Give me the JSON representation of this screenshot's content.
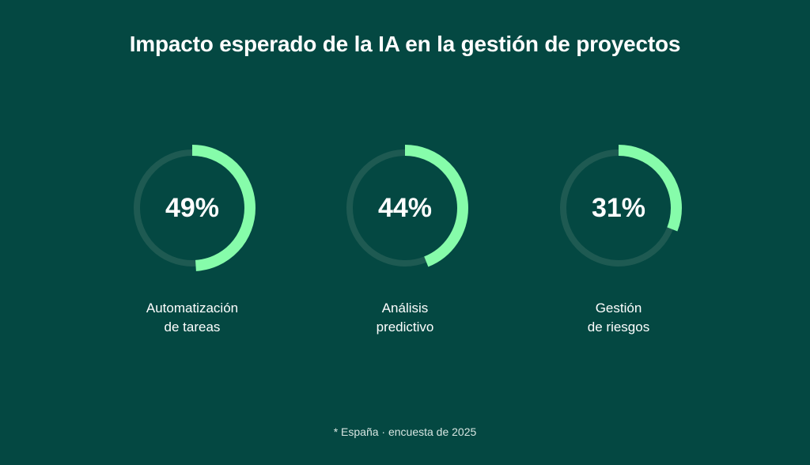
{
  "title": "Impacto esperado de la IA en la gestión de proyectos",
  "chart_data": {
    "type": "donut",
    "items": [
      {
        "label_line1": "Automatización",
        "label_line2": "de tareas",
        "value": 49,
        "display": "49%"
      },
      {
        "label_line1": "Análisis",
        "label_line2": "predictivo",
        "value": 44,
        "display": "44%"
      },
      {
        "label_line1": "Gestión",
        "label_line2": "de riesgos",
        "value": 31,
        "display": "31%"
      }
    ],
    "max": 100
  },
  "footnote": "* España · encuesta de 2025",
  "colors": {
    "background": "#044842",
    "track": "#1e5a52",
    "progress": "#86fcaa"
  }
}
